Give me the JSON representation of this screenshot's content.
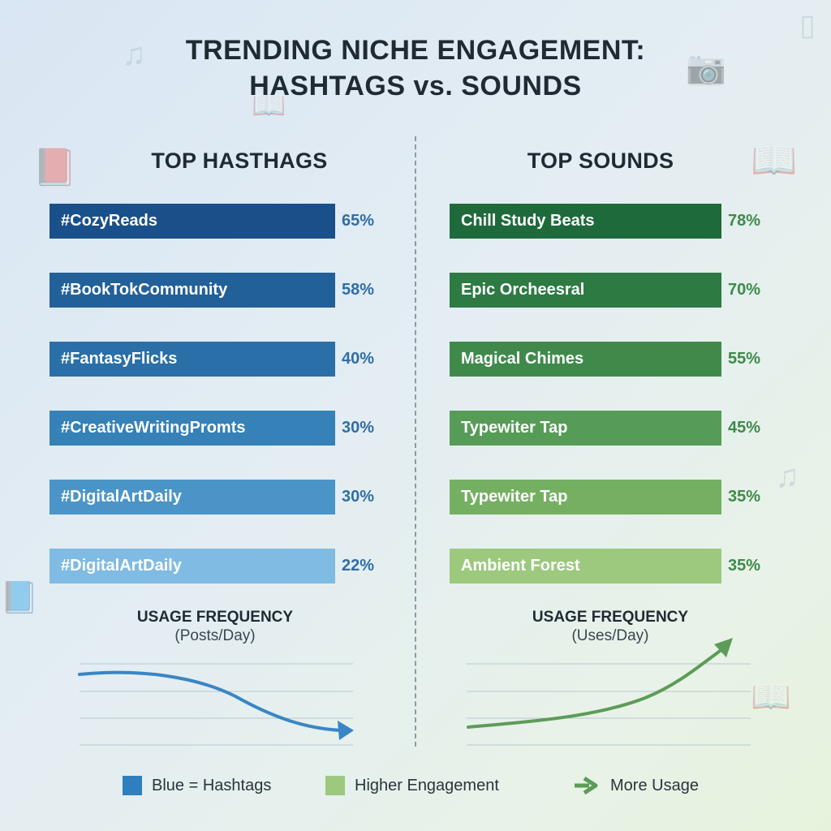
{
  "title": {
    "line1": "TRENDING NICHE ENGAGEMENT:",
    "line2": "HASHTAGS vs. SOUNDS"
  },
  "colors": {
    "hashtag_bars": [
      "#1a5089",
      "#22609a",
      "#2a6fa8",
      "#3581b8",
      "#4a94c8",
      "#7fbbe3"
    ],
    "hashtag_pct": "#2f6ea6",
    "sound_bars": [
      "#1f6a3b",
      "#2d7a43",
      "#3f8a4b",
      "#579c56",
      "#75b062",
      "#9cc97e"
    ],
    "sound_pct": "#3f8a4b",
    "trend_blue": "#3a85c4",
    "trend_green": "#5c9c58"
  },
  "chart_data": [
    {
      "type": "bar",
      "orientation": "horizontal",
      "title": "TOP HASTHAGS",
      "categories": [
        "#CozyReads",
        "#BookTokCommunity",
        "#FantasyFlicks",
        "#CreativeWritingPromts",
        "#DigitalArtDaily",
        "#DigitalArtDaily"
      ],
      "values": [
        65,
        58,
        40,
        30,
        30,
        22
      ],
      "value_labels": [
        "65%",
        "58%",
        "40%",
        "30%",
        "30%",
        "22%"
      ],
      "unit": "%"
    },
    {
      "type": "bar",
      "orientation": "horizontal",
      "title": "TOP SOUNDS",
      "categories": [
        "Chill Study Beats",
        "Epic Orcheesral",
        "Magical Chimes",
        "Typewiter Tap",
        "Typewiter Tap",
        "Ambient Forest"
      ],
      "values": [
        78,
        70,
        55,
        45,
        35,
        35
      ],
      "value_labels": [
        "78%",
        "70%",
        "55%",
        "45%",
        "35%",
        "35%"
      ],
      "unit": "%"
    },
    {
      "type": "line",
      "title": "USAGE FREQUENCY",
      "subtitle": "(Posts/Day)",
      "trend": "decreasing",
      "grid": true
    },
    {
      "type": "line",
      "title": "USAGE FREQUENCY",
      "subtitle": "(Uses/Day)",
      "trend": "increasing",
      "grid": true
    }
  ],
  "legend": [
    {
      "label": "Blue = Hashtags",
      "color": "#2f7ec0",
      "icon": "square-swatch"
    },
    {
      "label": "Higher Engagement",
      "color": "#9cc97e",
      "icon": "square-swatch"
    },
    {
      "label": "More Usage",
      "color": "#5c9c58",
      "icon": "arrow-right-icon"
    }
  ]
}
